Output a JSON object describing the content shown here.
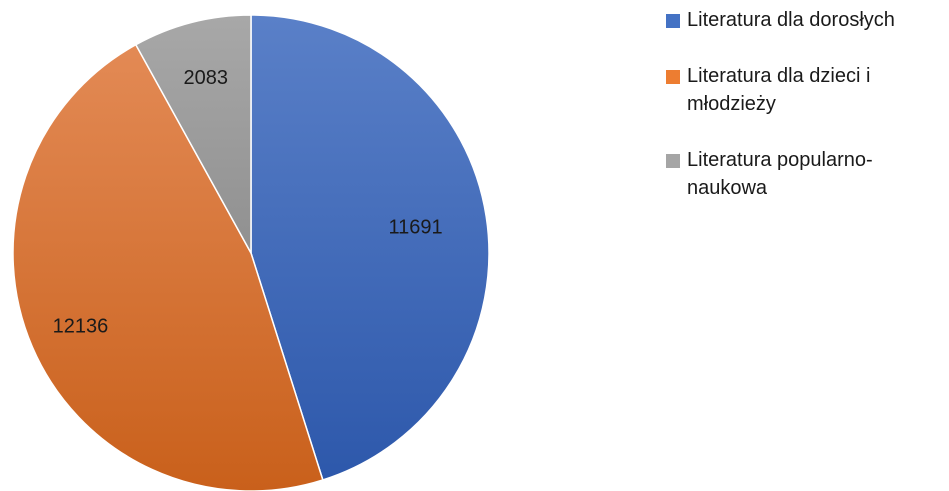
{
  "chart_data": {
    "type": "pie",
    "title": "",
    "categories": [
      "Literatura dla dorosłych",
      "Literatura dla dzieci i młodzieży",
      "Literatura popularno-naukowa"
    ],
    "values": [
      11691,
      12136,
      2083
    ],
    "data_labels": [
      "11691",
      "12136",
      "2083"
    ],
    "colors": [
      "#4472c4",
      "#ed7d31",
      "#a5a5a5"
    ],
    "start_angle_deg": 0,
    "direction": "clockwise",
    "legend_position": "right"
  },
  "legend": {
    "items": [
      {
        "label": "Literatura dla dorosłych",
        "color": "#4472c4"
      },
      {
        "label": "Literatura dla dzieci i młodzieży",
        "color": "#ed7d31"
      },
      {
        "label": "Literatura popularno-naukowa",
        "color": "#a5a5a5"
      }
    ]
  }
}
